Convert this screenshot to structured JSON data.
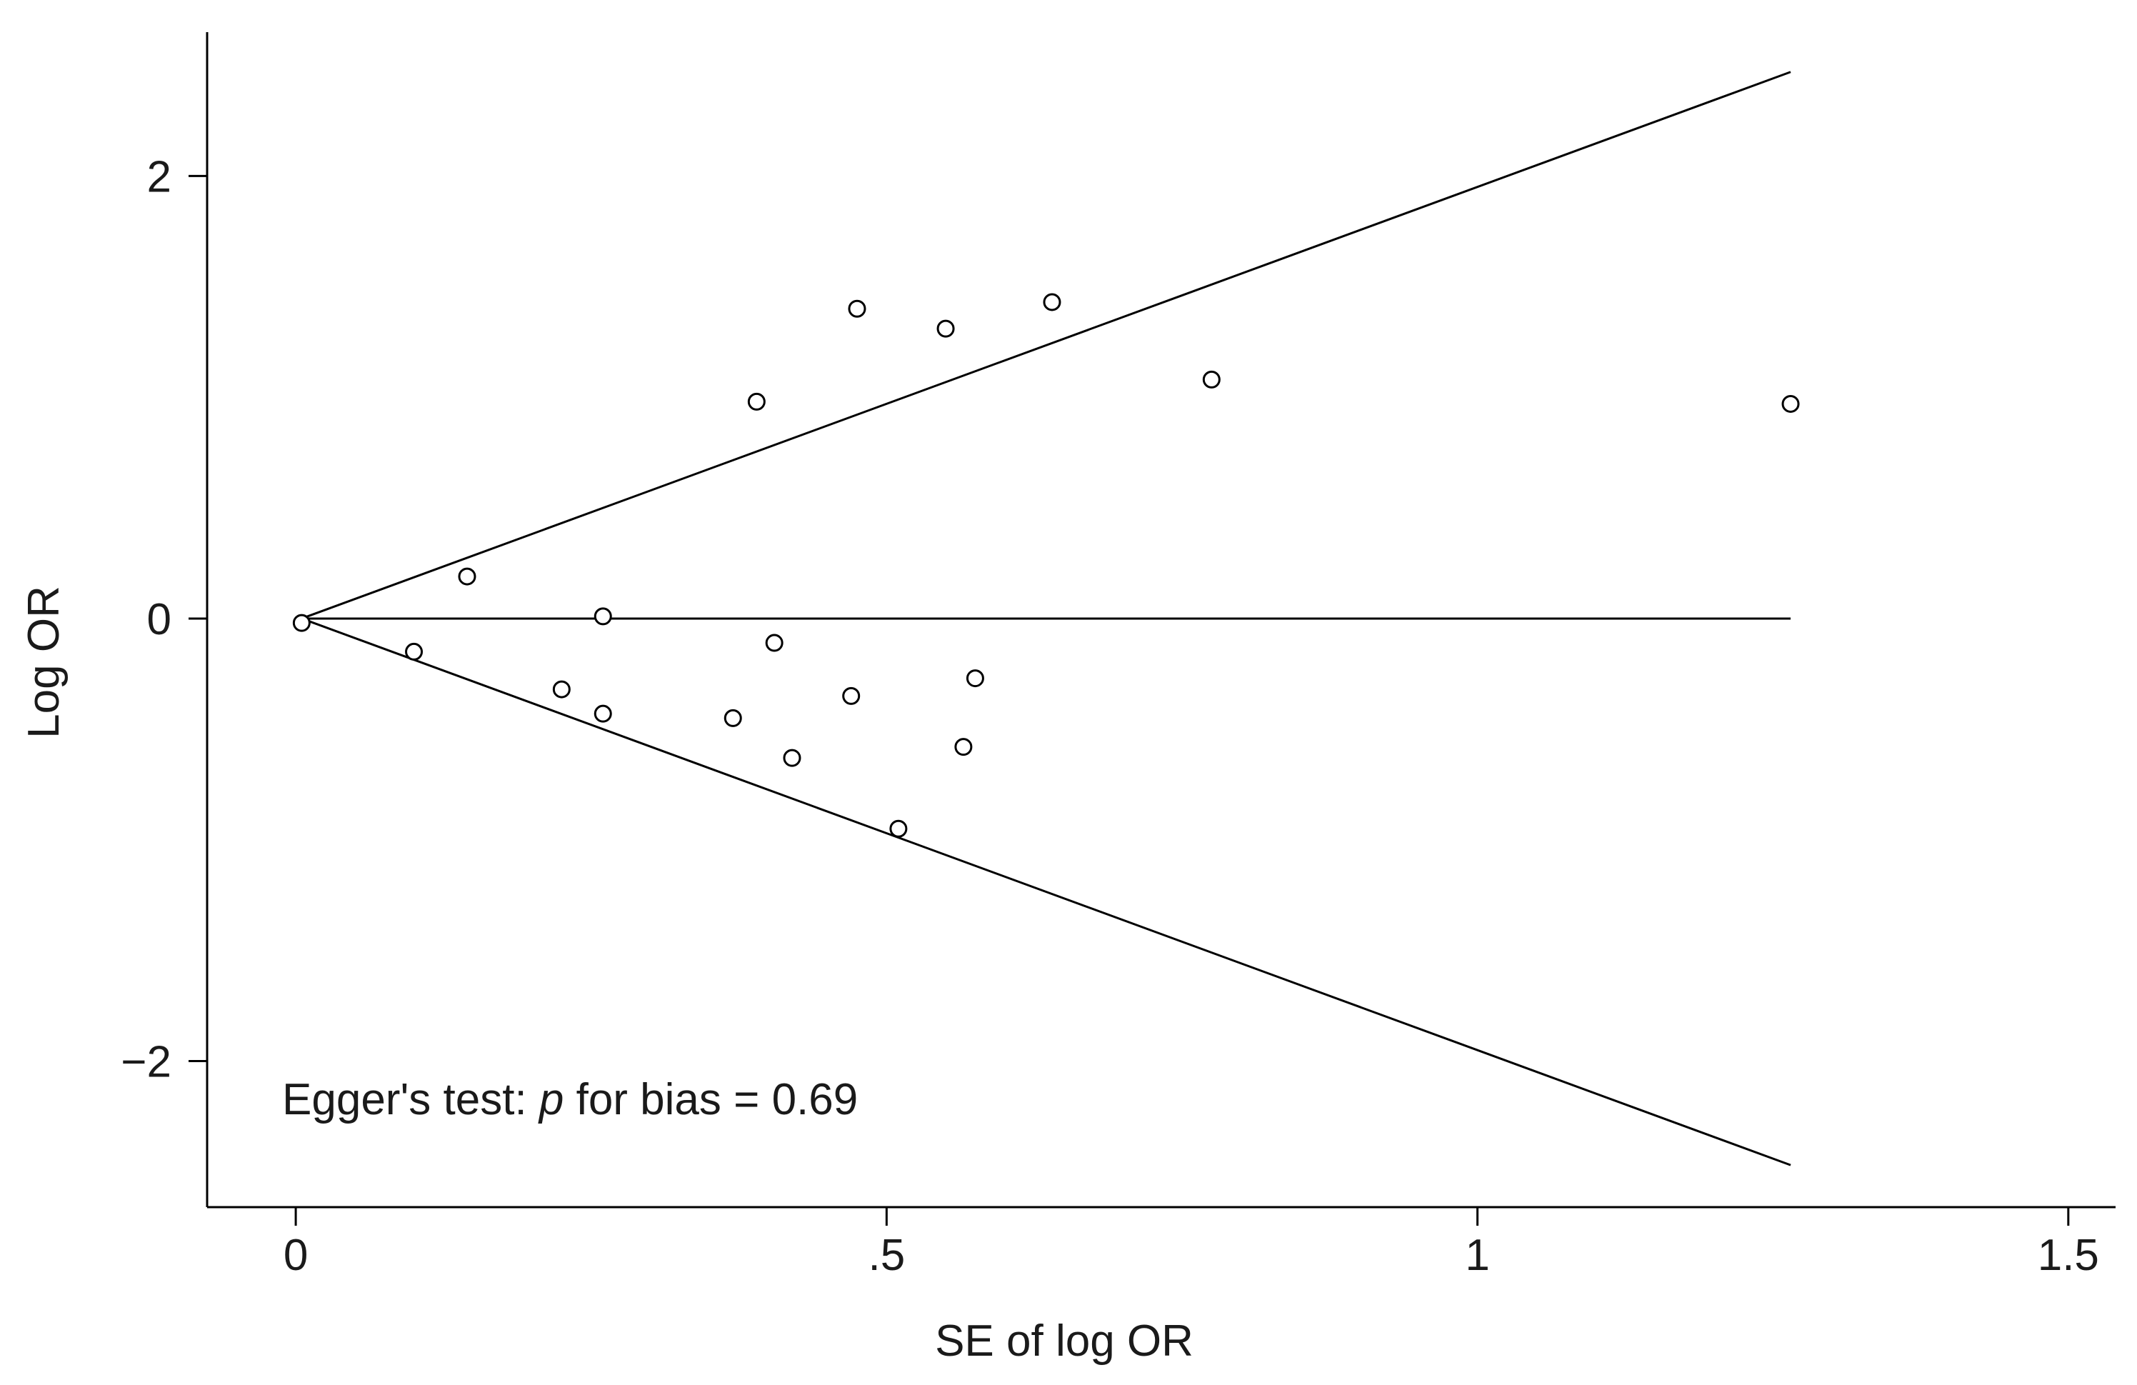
{
  "chart_data": {
    "type": "scatter",
    "title": "",
    "xlabel": "SE of log OR",
    "ylabel": "Log OR",
    "xlim": [
      -0.075,
      1.54
    ],
    "ylim": [
      -2.66,
      2.65
    ],
    "x_ticks": [
      {
        "value": 0,
        "label": "0"
      },
      {
        "value": 0.5,
        "label": ".5"
      },
      {
        "value": 1,
        "label": "1"
      },
      {
        "value": 1.5,
        "label": "1.5"
      }
    ],
    "y_ticks": [
      {
        "value": 2,
        "label": "2"
      },
      {
        "value": 0,
        "label": "0"
      },
      {
        "value": -2,
        "label": "−2"
      }
    ],
    "reference_line": {
      "y": 0,
      "x_start": 0.005,
      "x_end": 1.265
    },
    "funnel_limits": {
      "apex": {
        "x": 0.005,
        "y": 0
      },
      "upper_end": {
        "x": 1.265,
        "y": 2.47
      },
      "lower_end": {
        "x": 1.265,
        "y": -2.47
      }
    },
    "points": [
      {
        "x": 0.005,
        "y": -0.02,
        "filled": true
      },
      {
        "x": 0.1,
        "y": -0.15
      },
      {
        "x": 0.145,
        "y": 0.19
      },
      {
        "x": 0.225,
        "y": -0.32
      },
      {
        "x": 0.26,
        "y": 0.01
      },
      {
        "x": 0.26,
        "y": -0.43
      },
      {
        "x": 0.37,
        "y": -0.45
      },
      {
        "x": 0.39,
        "y": 0.98
      },
      {
        "x": 0.405,
        "y": -0.11
      },
      {
        "x": 0.42,
        "y": -0.63
      },
      {
        "x": 0.47,
        "y": -0.35
      },
      {
        "x": 0.475,
        "y": 1.4
      },
      {
        "x": 0.51,
        "y": -0.95
      },
      {
        "x": 0.55,
        "y": 1.31
      },
      {
        "x": 0.565,
        "y": -0.58
      },
      {
        "x": 0.575,
        "y": -0.27
      },
      {
        "x": 0.64,
        "y": 1.43
      },
      {
        "x": 0.775,
        "y": 1.08
      },
      {
        "x": 1.265,
        "y": 0.97
      }
    ],
    "annotation": {
      "prefix": "Egger's test: ",
      "italic": "p",
      "suffix": " for bias = 0.69"
    }
  }
}
